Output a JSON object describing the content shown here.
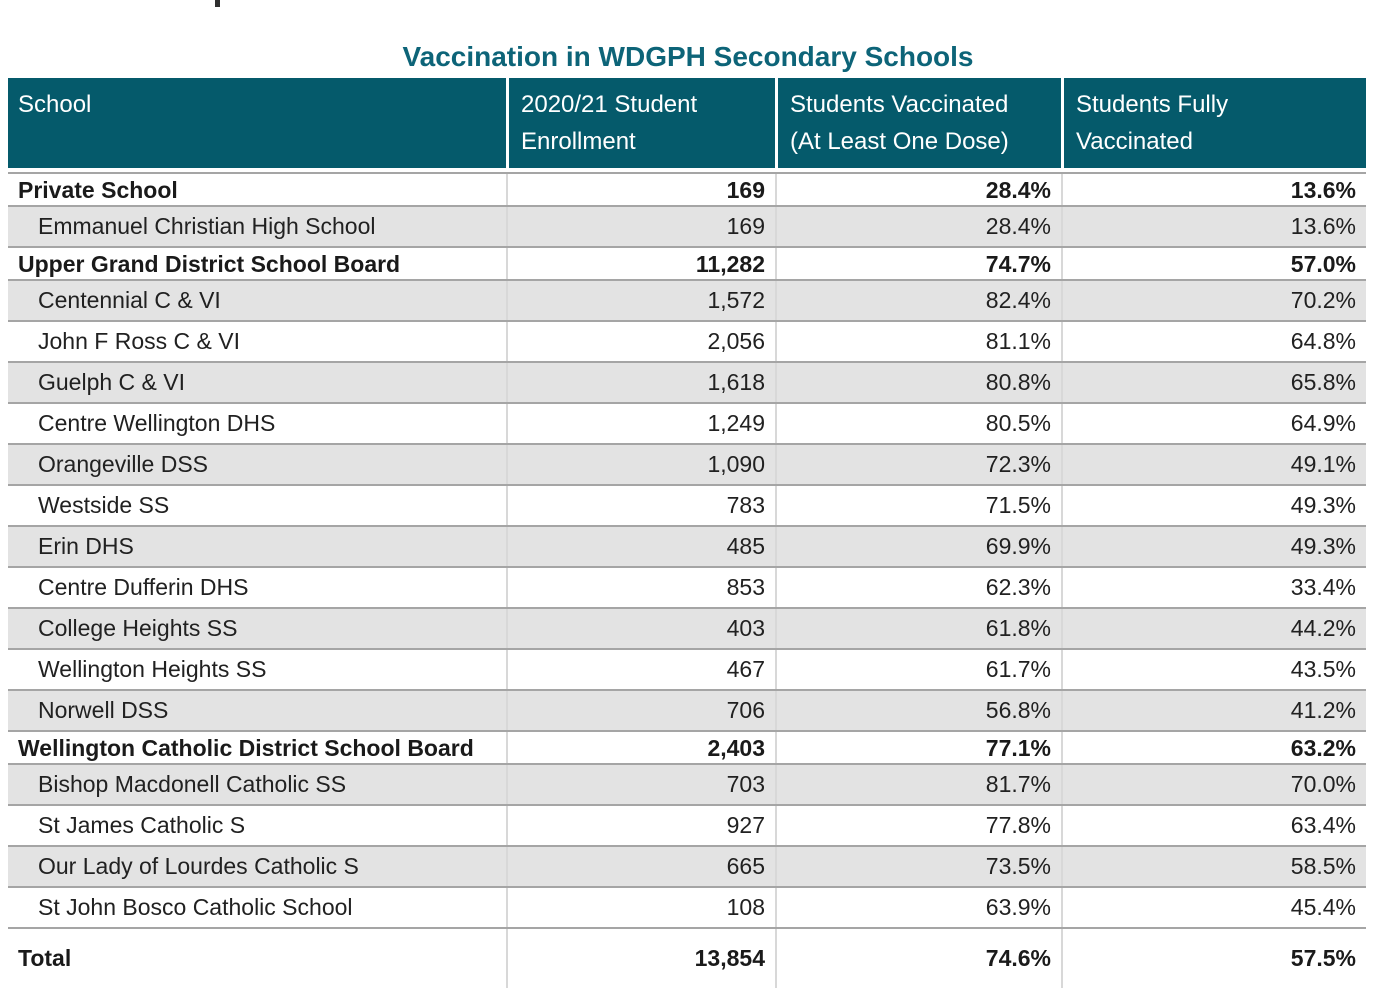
{
  "title": "Vaccination in WDGPH Secondary Schools",
  "colors": {
    "header_bg": "#055a6b",
    "header_text": "#ffffff",
    "title_text": "#0d6478",
    "row_alt_bg": "#e3e3e3",
    "row_border": "#a5a5a5",
    "column_divider": "#d8d8d8",
    "body_text": "#212121"
  },
  "table": {
    "columns": [
      {
        "id": "school",
        "lines": [
          "School"
        ]
      },
      {
        "id": "enrollment",
        "lines": [
          "2020/21 Student",
          "Enrollment"
        ]
      },
      {
        "id": "one_dose",
        "lines": [
          "Students Vaccinated",
          "(At Least One Dose)"
        ]
      },
      {
        "id": "fully",
        "lines": [
          "Students Fully",
          "Vaccinated"
        ]
      }
    ],
    "rows": [
      {
        "school": "Private School",
        "enrollment": "169",
        "one_dose": "28.4%",
        "fully": "13.6%",
        "style": "section",
        "shaded": false
      },
      {
        "school": "Emmanuel Christian High School",
        "enrollment": "169",
        "one_dose": "28.4%",
        "fully": "13.6%",
        "style": "sub",
        "shaded": true
      },
      {
        "school": "Upper Grand District School Board",
        "enrollment": "11,282",
        "one_dose": "74.7%",
        "fully": "57.0%",
        "style": "section",
        "shaded": false
      },
      {
        "school": "Centennial C & VI",
        "enrollment": "1,572",
        "one_dose": "82.4%",
        "fully": "70.2%",
        "style": "sub",
        "shaded": true
      },
      {
        "school": "John F Ross C & VI",
        "enrollment": "2,056",
        "one_dose": "81.1%",
        "fully": "64.8%",
        "style": "sub",
        "shaded": false
      },
      {
        "school": "Guelph C & VI",
        "enrollment": "1,618",
        "one_dose": "80.8%",
        "fully": "65.8%",
        "style": "sub",
        "shaded": true
      },
      {
        "school": "Centre Wellington DHS",
        "enrollment": "1,249",
        "one_dose": "80.5%",
        "fully": "64.9%",
        "style": "sub",
        "shaded": false
      },
      {
        "school": "Orangeville DSS",
        "enrollment": "1,090",
        "one_dose": "72.3%",
        "fully": "49.1%",
        "style": "sub",
        "shaded": true
      },
      {
        "school": "Westside SS",
        "enrollment": "783",
        "one_dose": "71.5%",
        "fully": "49.3%",
        "style": "sub",
        "shaded": false
      },
      {
        "school": "Erin DHS",
        "enrollment": "485",
        "one_dose": "69.9%",
        "fully": "49.3%",
        "style": "sub",
        "shaded": true
      },
      {
        "school": "Centre Dufferin DHS",
        "enrollment": "853",
        "one_dose": "62.3%",
        "fully": "33.4%",
        "style": "sub",
        "shaded": false
      },
      {
        "school": "College Heights SS",
        "enrollment": "403",
        "one_dose": "61.8%",
        "fully": "44.2%",
        "style": "sub",
        "shaded": true
      },
      {
        "school": "Wellington Heights SS",
        "enrollment": "467",
        "one_dose": "61.7%",
        "fully": "43.5%",
        "style": "sub",
        "shaded": false
      },
      {
        "school": "Norwell DSS",
        "enrollment": "706",
        "one_dose": "56.8%",
        "fully": "41.2%",
        "style": "sub",
        "shaded": true
      },
      {
        "school": "Wellington Catholic District School Board",
        "enrollment": "2,403",
        "one_dose": "77.1%",
        "fully": "63.2%",
        "style": "section",
        "shaded": false
      },
      {
        "school": "Bishop Macdonell Catholic SS",
        "enrollment": "703",
        "one_dose": "81.7%",
        "fully": "70.0%",
        "style": "sub",
        "shaded": true
      },
      {
        "school": "St James Catholic S",
        "enrollment": "927",
        "one_dose": "77.8%",
        "fully": "63.4%",
        "style": "sub",
        "shaded": false
      },
      {
        "school": "Our Lady of Lourdes Catholic S",
        "enrollment": "665",
        "one_dose": "73.5%",
        "fully": "58.5%",
        "style": "sub",
        "shaded": true
      },
      {
        "school": "St John Bosco Catholic School",
        "enrollment": "108",
        "one_dose": "63.9%",
        "fully": "45.4%",
        "style": "sub",
        "shaded": false
      },
      {
        "school": "Total",
        "enrollment": "13,854",
        "one_dose": "74.6%",
        "fully": "57.5%",
        "style": "total",
        "shaded": false
      }
    ]
  }
}
